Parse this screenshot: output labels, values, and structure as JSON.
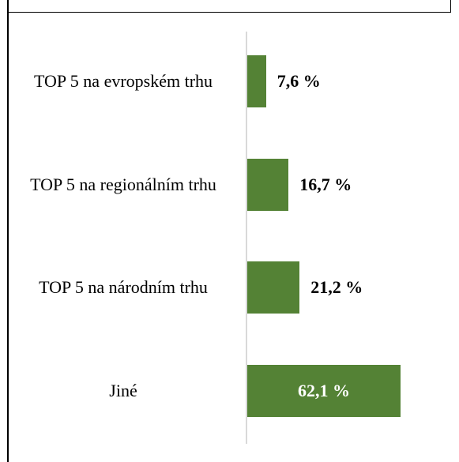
{
  "chart_data": {
    "type": "barh",
    "categories": [
      "TOP 5 na evropském trhu",
      "TOP 5 na regionálním trhu",
      "TOP 5 na národním trhu",
      "Jiné"
    ],
    "values": [
      7.6,
      16.7,
      21.2,
      62.1
    ],
    "value_labels": [
      "7,6 %",
      "16,7 %",
      "21,2 %",
      "62,1 %"
    ],
    "color": "#548235"
  }
}
